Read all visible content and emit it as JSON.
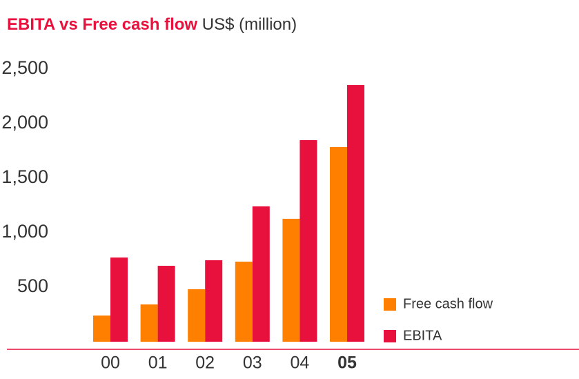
{
  "chart_data": {
    "type": "bar",
    "title": "EBITA vs Free cash flow",
    "subtitle": "US$ (million)",
    "categories": [
      "00",
      "01",
      "02",
      "03",
      "04",
      "05"
    ],
    "series": [
      {
        "name": "Free cash flow",
        "color": "#ff8000",
        "values": [
          240,
          342,
          481,
          734,
          1127,
          1785
        ]
      },
      {
        "name": "EBITA",
        "color": "#e8103c",
        "values": [
          772,
          696,
          747,
          1241,
          1848,
          2354
        ]
      }
    ],
    "ylim": [
      0,
      2500
    ],
    "yticks": [
      {
        "value": 500,
        "label": "500"
      },
      {
        "value": 1000,
        "label": "1,000"
      },
      {
        "value": 1500,
        "label": "1,500"
      },
      {
        "value": 2000,
        "label": "2,000"
      },
      {
        "value": 2500,
        "label": "2,500"
      }
    ],
    "grid": false
  }
}
